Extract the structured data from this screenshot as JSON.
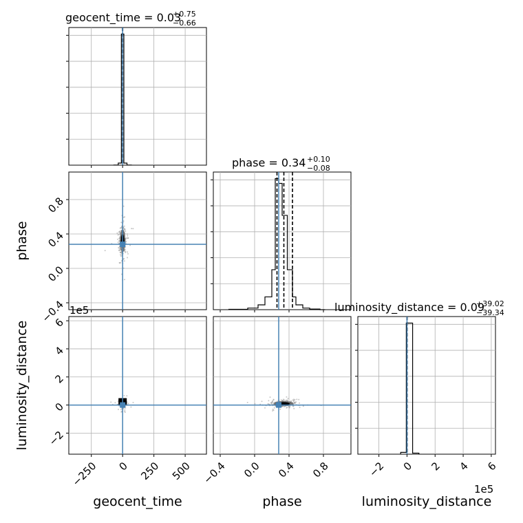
{
  "chart_data": {
    "type": "corner",
    "parameters": [
      "geocent_time",
      "phase",
      "luminosity_distance"
    ],
    "axis_labels": {
      "x": [
        "geocent_time",
        "phase",
        "luminosity_distance"
      ],
      "y": [
        "phase",
        "luminosity_distance"
      ]
    },
    "titles": [
      {
        "param": "geocent_time",
        "text": "geocent_time = 0.03",
        "upper": "+0.75",
        "lower": "−0.66",
        "median": 0.03,
        "plus": 0.75,
        "minus": 0.66
      },
      {
        "param": "phase",
        "text": "phase = 0.34",
        "upper": "+0.10",
        "lower": "−0.08",
        "median": 0.34,
        "plus": 0.1,
        "minus": 0.08
      },
      {
        "param": "luminosity_distance",
        "text": "luminosity_distance = 0.09",
        "upper": "+39.02",
        "lower": "−39.34",
        "median": 0.09,
        "plus": 39.02,
        "minus": 39.34
      }
    ],
    "ranges": {
      "geocent_time": [
        -430,
        670
      ],
      "phase": [
        -0.48,
        1.12
      ],
      "luminosity_distance": [
        -350000,
        630000
      ]
    },
    "ticks": {
      "geocent_time": [
        -250,
        0,
        250,
        500
      ],
      "phase": [
        -0.4,
        0.0,
        0.4,
        0.8
      ],
      "luminosity_distance": [
        -2,
        0,
        2,
        4,
        6
      ]
    },
    "tick_labels": {
      "geocent_time": [
        "−250",
        "0",
        "250",
        "500"
      ],
      "phase": [
        "−0.4",
        "0.0",
        "0.4",
        "0.8"
      ],
      "luminosity_distance": [
        "−2",
        "0",
        "2",
        "4",
        "6"
      ]
    },
    "offset_text": "1e5",
    "truths": {
      "geocent_time": 0,
      "phase": 0.28,
      "luminosity_distance": 0
    },
    "truth_color": "#4682b4",
    "histograms": {
      "geocent_time": {
        "bin_edges": [
          -70,
          -35,
          -10,
          10,
          35,
          70
        ],
        "counts": [
          0.04,
          0.6,
          38.5,
          0.6,
          0.04
        ],
        "quantile_lines": [
          -0.63,
          0.03,
          0.78
        ]
      },
      "phase": {
        "bin_edges": [
          -0.3,
          -0.08,
          0.04,
          0.12,
          0.2,
          0.24,
          0.28,
          0.32,
          0.38,
          0.44,
          0.48,
          0.56,
          0.64,
          0.76,
          0.82
        ],
        "counts": [
          0.1,
          0.5,
          1.5,
          4,
          12.5,
          41,
          39.5,
          29.5,
          12.5,
          4,
          1.5,
          0.5,
          0.2,
          0
        ],
        "quantile_lines": [
          0.26,
          0.34,
          0.44
        ]
      },
      "luminosity_distance": {
        "bin_edges": [
          -45000,
          -5000,
          40000,
          85000
        ],
        "counts": [
          0.5,
          36,
          0.3
        ],
        "quantile_lines": [
          -39.25,
          0.09,
          39.11
        ]
      }
    },
    "colors": {
      "hist": "#000000",
      "grid": "#b0b0b0",
      "density": "#000000"
    }
  }
}
